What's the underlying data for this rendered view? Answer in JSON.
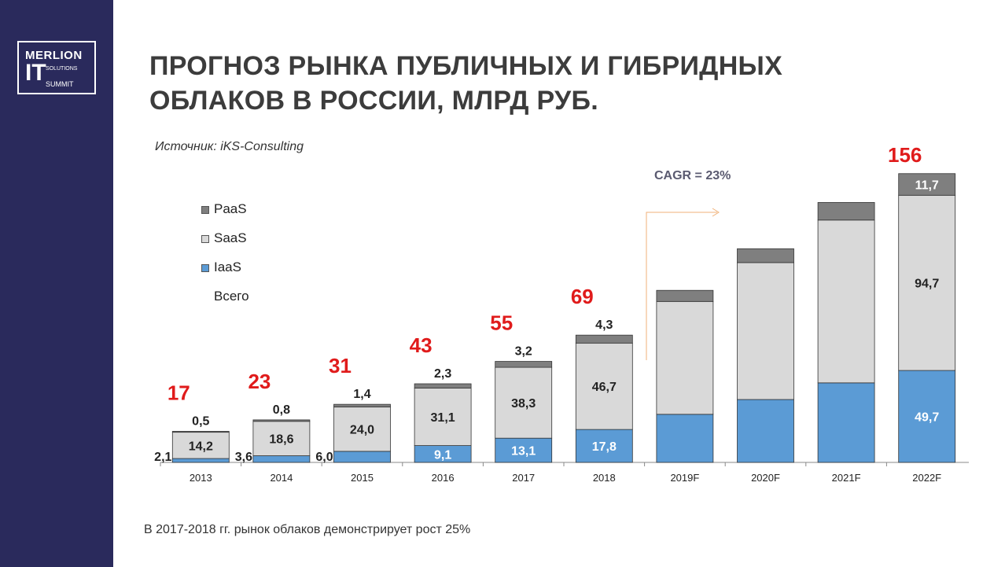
{
  "logo": {
    "line1": "MERLION",
    "line2": "IT",
    "line3a": "SOLUTIONS",
    "line3b": "SUMMIT"
  },
  "title": {
    "line1": "ПРОГНОЗ РЫНКА ПУБЛИЧНЫХ И ГИБРИДНЫХ",
    "line2": "ОБЛАКОВ В РОССИИ, МЛРД РУБ."
  },
  "source": "Источник: iKS-Consulting",
  "cagr": "CAGR = 23%",
  "footnote": "В 2017-2018 гг. рынок облаков демонстрирует рост 25%",
  "legend": {
    "paas": "PaaS",
    "saas": "SaaS",
    "iaas": "IaaS",
    "total": "Всего"
  },
  "colors": {
    "iaas": "#5b9bd5",
    "saas": "#d9d9d9",
    "paas": "#7f7f7f",
    "total": "#e01b1b",
    "sidebar": "#2a2a5c"
  },
  "chart_data": {
    "type": "bar",
    "stacked": true,
    "categories": [
      "2013",
      "2014",
      "2015",
      "2016",
      "2017",
      "2018",
      "2019F",
      "2020F",
      "2021F",
      "2022F"
    ],
    "series": [
      {
        "name": "IaaS",
        "values": [
          2.1,
          3.6,
          6.0,
          9.1,
          13.1,
          17.8,
          26,
          34,
          43,
          49.7
        ],
        "labels": [
          "2,1",
          "3,6",
          "6,0",
          "9,1",
          "13,1",
          "17,8",
          "",
          "",
          "",
          "49,7"
        ]
      },
      {
        "name": "SaaS",
        "values": [
          14.2,
          18.6,
          24.0,
          31.1,
          38.3,
          46.7,
          61,
          74,
          88,
          94.7
        ],
        "labels": [
          "14,2",
          "18,6",
          "24,0",
          "31,1",
          "38,3",
          "46,7",
          "",
          "",
          "",
          "94,7"
        ]
      },
      {
        "name": "PaaS",
        "values": [
          0.5,
          0.8,
          1.4,
          2.3,
          3.2,
          4.3,
          6,
          7.5,
          9.5,
          11.7
        ],
        "labels": [
          "0,5",
          "0,8",
          "1,4",
          "2,3",
          "3,2",
          "4,3",
          "",
          "",
          "",
          "11,7"
        ]
      }
    ],
    "totals": [
      17,
      23,
      31,
      43,
      55,
      69,
      null,
      null,
      null,
      156
    ],
    "total_labels": [
      "17",
      "23",
      "31",
      "43",
      "55",
      "69",
      "",
      "",
      "",
      "156"
    ],
    "ylim": [
      0,
      160
    ],
    "title": "",
    "xlabel": "",
    "ylabel": ""
  }
}
